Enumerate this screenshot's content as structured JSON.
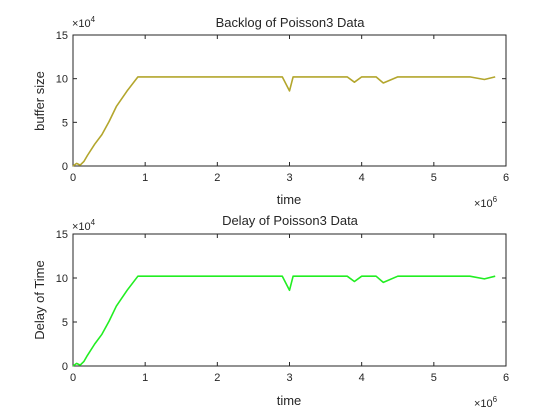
{
  "chart_data": [
    {
      "type": "line",
      "title": "Backlog of Poisson3 Data",
      "xlabel": "time",
      "ylabel": "buffer size",
      "x_exponent_label": "×10",
      "x_exponent_power": "6",
      "y_exponent_label": "×10",
      "y_exponent_power": "4",
      "xlim": [
        0,
        6
      ],
      "ylim": [
        0,
        15
      ],
      "xticks": [
        "0",
        "1",
        "2",
        "3",
        "4",
        "5",
        "6"
      ],
      "yticks": [
        "0",
        "5",
        "10",
        "15"
      ],
      "color": "#b3a62d",
      "grid": false,
      "series": [
        {
          "x": [
            0,
            0.05,
            0.1,
            0.15,
            0.2,
            0.3,
            0.4,
            0.5,
            0.6,
            0.75,
            0.9,
            1.05,
            1.2,
            1.35,
            1.5,
            1.7,
            1.9,
            2.05,
            2.2,
            2.4,
            2.6,
            2.75,
            2.9,
            3.0,
            3.05,
            3.2,
            3.4,
            3.6,
            3.8,
            3.9,
            4.0,
            4.2,
            4.3,
            4.5,
            4.7,
            5.0,
            5.3,
            5.5,
            5.7,
            5.85
          ],
          "y": [
            0,
            0.3,
            0.1,
            0.5,
            1.2,
            2.5,
            3.6,
            5.1,
            6.8,
            8.6,
            10.2,
            10.2,
            10.2,
            10.2,
            10.2,
            10.2,
            10.2,
            10.2,
            10.2,
            10.2,
            10.2,
            10.2,
            10.2,
            8.6,
            10.2,
            10.2,
            10.2,
            10.2,
            10.2,
            9.6,
            10.2,
            10.2,
            9.5,
            10.2,
            10.2,
            10.2,
            10.2,
            10.2,
            9.9,
            10.2
          ]
        }
      ]
    },
    {
      "type": "line",
      "title": "Delay of Poisson3 Data",
      "xlabel": "time",
      "ylabel": "Delay of Time",
      "x_exponent_label": "×10",
      "x_exponent_power": "6",
      "y_exponent_label": "×10",
      "y_exponent_power": "4",
      "xlim": [
        0,
        6
      ],
      "ylim": [
        0,
        15
      ],
      "xticks": [
        "0",
        "1",
        "2",
        "3",
        "4",
        "5",
        "6"
      ],
      "yticks": [
        "0",
        "5",
        "10",
        "15"
      ],
      "color": "#22ee22",
      "grid": false,
      "series": [
        {
          "x": [
            0,
            0.05,
            0.1,
            0.15,
            0.2,
            0.3,
            0.4,
            0.5,
            0.6,
            0.75,
            0.9,
            1.05,
            1.2,
            1.35,
            1.5,
            1.7,
            1.9,
            2.05,
            2.2,
            2.4,
            2.6,
            2.75,
            2.9,
            3.0,
            3.05,
            3.2,
            3.4,
            3.6,
            3.8,
            3.9,
            4.0,
            4.2,
            4.3,
            4.5,
            4.7,
            5.0,
            5.3,
            5.5,
            5.7,
            5.85
          ],
          "y": [
            0,
            0.3,
            0.1,
            0.5,
            1.2,
            2.5,
            3.6,
            5.1,
            6.8,
            8.6,
            10.2,
            10.2,
            10.2,
            10.2,
            10.2,
            10.2,
            10.2,
            10.2,
            10.2,
            10.2,
            10.2,
            10.2,
            10.2,
            8.6,
            10.2,
            10.2,
            10.2,
            10.2,
            10.2,
            9.6,
            10.2,
            10.2,
            9.5,
            10.2,
            10.2,
            10.2,
            10.2,
            10.2,
            9.9,
            10.2
          ]
        }
      ]
    }
  ]
}
